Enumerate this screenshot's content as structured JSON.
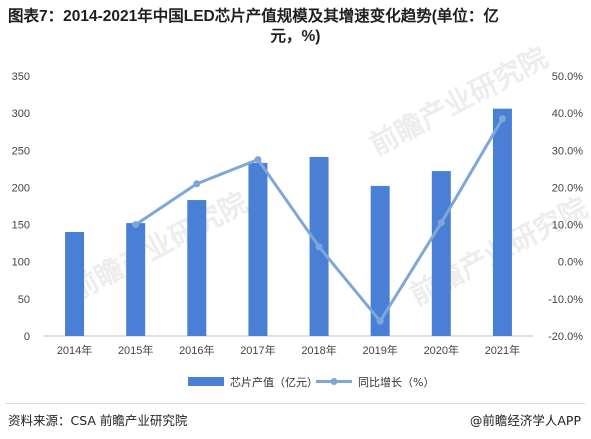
{
  "header": {
    "title_line1": "图表7：2014-2021年中国LED芯片产值规模及其增速变化趋势(单位：亿",
    "title_line2": "元，%)"
  },
  "footer": {
    "source": "资料来源：CSA 前瞻产业研究院",
    "brand": "@前瞻经济学人APP"
  },
  "watermark": {
    "text": "前瞻产业研究院"
  },
  "chart_data": {
    "type": "bar",
    "categories": [
      "2014年",
      "2015年",
      "2016年",
      "2017年",
      "2018年",
      "2019年",
      "2020年",
      "2021年"
    ],
    "series": [
      {
        "name": "芯片产值（亿元）",
        "type": "bar",
        "axis": "left",
        "color": "#4a7fd6",
        "values": [
          140,
          152,
          183,
          233,
          241,
          202,
          222,
          306
        ]
      },
      {
        "name": "同比增长（%）",
        "type": "line",
        "axis": "right",
        "color": "#7ea7d9",
        "values": [
          null,
          10.0,
          21.0,
          27.5,
          4.0,
          -16.0,
          10.5,
          38.5
        ]
      }
    ],
    "y_left": {
      "min": 0,
      "max": 350,
      "ticks": [
        0,
        50,
        100,
        150,
        200,
        250,
        300,
        350
      ]
    },
    "y_right": {
      "min": -20,
      "max": 50,
      "ticks": [
        "-20.0%",
        "-10.0%",
        "0.0%",
        "10.0%",
        "20.0%",
        "30.0%",
        "40.0%",
        "50.0%"
      ]
    },
    "grid": false,
    "legend": "bottom"
  }
}
